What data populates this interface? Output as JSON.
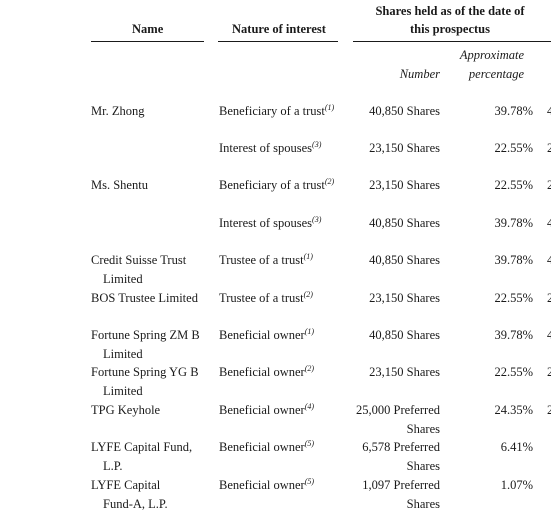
{
  "header": {
    "name": "Name",
    "nature": "Nature of interest",
    "shares_line1": "Shares held as of the date of",
    "shares_line2": "this prospectus",
    "number": "Number",
    "approx_line1": "Approximate",
    "approx_line2": "percentage"
  },
  "rows": [
    {
      "name1": "Mr. Zhong",
      "name2": "",
      "nature": "Beneficiary of a trust",
      "note": "(1)",
      "num1": "40,850 Shares",
      "num2": "",
      "pct": "39.78%",
      "trail": "4"
    },
    {
      "name1": "",
      "name2": "",
      "nature": "Interest of spouses",
      "note": "(3)",
      "num1": "23,150 Shares",
      "num2": "",
      "pct": "22.55%",
      "trail": "2"
    },
    {
      "name1": "Ms. Shentu",
      "name2": "",
      "nature": "Beneficiary of a trust",
      "note": "(2)",
      "num1": "23,150 Shares",
      "num2": "",
      "pct": "22.55%",
      "trail": "2"
    },
    {
      "name1": "",
      "name2": "",
      "nature": "Interest of spouses",
      "note": "(3)",
      "num1": "40,850 Shares",
      "num2": "",
      "pct": "39.78%",
      "trail": "4"
    },
    {
      "name1": "Credit Suisse Trust",
      "name2": "Limited",
      "nature": "Trustee of a trust",
      "note": "(1)",
      "num1": "40,850 Shares",
      "num2": "",
      "pct": "39.78%",
      "trail": "4"
    },
    {
      "name1": "BOS Trustee Limited",
      "name2": "",
      "nature": "Trustee of a trust",
      "note": "(2)",
      "num1": "23,150 Shares",
      "num2": "",
      "pct": "22.55%",
      "trail": "2"
    },
    {
      "name1": "Fortune Spring ZM B",
      "name2": "Limited",
      "nature": "Beneficial owner",
      "note": "(1)",
      "num1": "40,850 Shares",
      "num2": "",
      "pct": "39.78%",
      "trail": "4"
    },
    {
      "name1": "Fortune Spring YG B",
      "name2": "Limited",
      "nature": "Beneficial owner",
      "note": "(2)",
      "num1": "23,150 Shares",
      "num2": "",
      "pct": "22.55%",
      "trail": "2"
    },
    {
      "name1": "TPG Keyhole",
      "name2": "",
      "nature": "Beneficial owner",
      "note": "(4)",
      "num1": "25,000 Preferred",
      "num2": "Shares",
      "pct": "24.35%",
      "trail": "2"
    },
    {
      "name1": "LYFE Capital Fund,",
      "name2": "L.P.",
      "nature": "Beneficial owner",
      "note": "(5)",
      "num1": "6,578 Preferred",
      "num2": "Shares",
      "pct": "6.41%",
      "trail": ""
    },
    {
      "name1": "LYFE Capital",
      "name2": "Fund-A, L.P.",
      "nature": "Beneficial owner",
      "note": "(5)",
      "num1": "1,097 Preferred",
      "num2": "Shares",
      "pct": "1.07%",
      "trail": ""
    }
  ]
}
